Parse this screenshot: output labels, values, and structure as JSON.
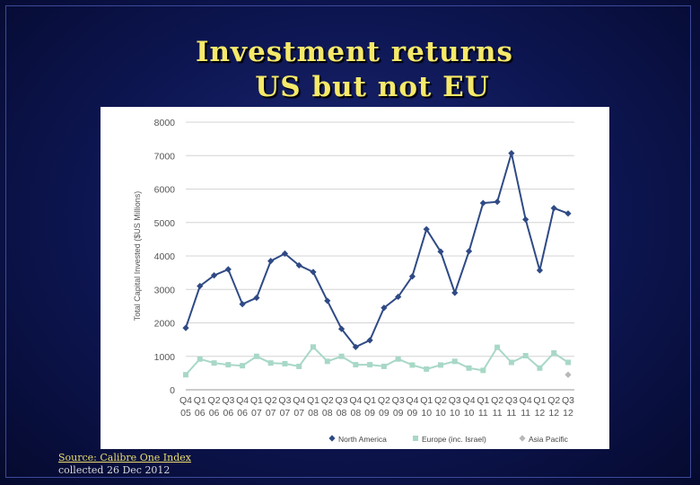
{
  "slide": {
    "title_line1": "Investment returns",
    "title_line2": "US but not EU",
    "source": "Source:  Calibre One Index",
    "collected": "collected  26 Dec 2012"
  },
  "chart_data": {
    "type": "line",
    "ylabel": "Total Capital Invested ($US Millions)",
    "ylim": [
      0,
      8000
    ],
    "yticks": [
      0,
      1000,
      2000,
      3000,
      4000,
      5000,
      6000,
      7000,
      8000
    ],
    "grid": true,
    "legend_position": "bottom",
    "categories": [
      [
        "Q4",
        "05"
      ],
      [
        "Q1",
        "06"
      ],
      [
        "Q2",
        "06"
      ],
      [
        "Q3",
        "06"
      ],
      [
        "Q4",
        "06"
      ],
      [
        "Q1",
        "07"
      ],
      [
        "Q2",
        "07"
      ],
      [
        "Q3",
        "07"
      ],
      [
        "Q4",
        "07"
      ],
      [
        "Q1",
        "08"
      ],
      [
        "Q2",
        "08"
      ],
      [
        "Q3",
        "08"
      ],
      [
        "Q4",
        "08"
      ],
      [
        "Q1",
        "09"
      ],
      [
        "Q2",
        "09"
      ],
      [
        "Q3",
        "09"
      ],
      [
        "Q4",
        "09"
      ],
      [
        "Q1",
        "10"
      ],
      [
        "Q2",
        "10"
      ],
      [
        "Q3",
        "10"
      ],
      [
        "Q4",
        "10"
      ],
      [
        "Q1",
        "11"
      ],
      [
        "Q2",
        "11"
      ],
      [
        "Q3",
        "11"
      ],
      [
        "Q4",
        "11"
      ],
      [
        "Q1",
        "12"
      ],
      [
        "Q2",
        "12"
      ],
      [
        "Q3",
        "12"
      ]
    ],
    "series": [
      {
        "name": "North America",
        "color": "#2f4a85",
        "marker": "diamond",
        "values": [
          1850,
          3100,
          3420,
          3600,
          2560,
          2750,
          3850,
          4070,
          3720,
          3520,
          2660,
          1820,
          1280,
          1480,
          2450,
          2780,
          3390,
          4800,
          4130,
          2900,
          4140,
          5580,
          5620,
          7070,
          5090,
          3570,
          5430,
          5270
        ]
      },
      {
        "name": "Europe (inc. Israel)",
        "color": "#a8d8c6",
        "marker": "square",
        "values": [
          450,
          920,
          800,
          750,
          720,
          1000,
          800,
          780,
          700,
          1280,
          850,
          1000,
          750,
          750,
          700,
          920,
          740,
          620,
          740,
          850,
          650,
          580,
          1270,
          820,
          1020,
          650,
          1100,
          820
        ]
      },
      {
        "name": "Asia Pacific",
        "color": "#b8b8b8",
        "marker": "diamond",
        "values": [
          null,
          null,
          null,
          null,
          null,
          null,
          null,
          null,
          null,
          null,
          null,
          null,
          null,
          null,
          null,
          null,
          null,
          null,
          null,
          null,
          null,
          null,
          null,
          null,
          null,
          null,
          null,
          450
        ]
      }
    ]
  }
}
